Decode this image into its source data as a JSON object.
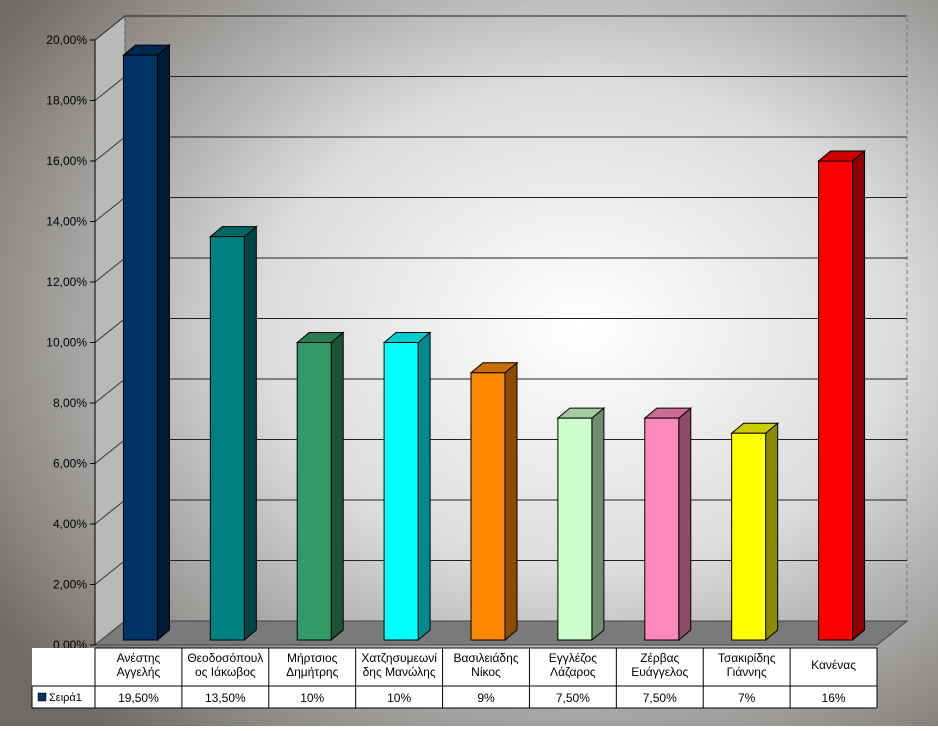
{
  "chart_data": {
    "type": "bar",
    "title": "",
    "xlabel": "",
    "ylabel": "",
    "ylim": [
      0,
      20
    ],
    "ytick_labels": [
      "0,00%",
      "2,00%",
      "4,00%",
      "6,00%",
      "8,00%",
      "10,00%",
      "12,00%",
      "14,00%",
      "16,00%",
      "18,00%",
      "20,00%"
    ],
    "categories": [
      [
        "Ανέστης",
        "Αγγελής"
      ],
      [
        "Θεοδοσόπουλ",
        "ος Ιάκωβος"
      ],
      [
        "Μήρτσιος",
        "Δημήτρης"
      ],
      [
        "Χατζησυμεωνί",
        "δης Μανώλης"
      ],
      [
        "Βασιλειάδης",
        "Νίκος"
      ],
      [
        "Εγγλέζος",
        "Λάζαρος"
      ],
      [
        "Ζέρβας",
        "Ευάγγελος"
      ],
      [
        "Τσακιρίδης",
        "Γιάννης"
      ],
      [
        "Κανένας"
      ]
    ],
    "series": [
      {
        "name": "Σειρά1",
        "values": [
          19.5,
          13.5,
          10,
          10,
          9,
          7.5,
          7.5,
          7,
          16
        ],
        "value_labels": [
          "19,50%",
          "13,50%",
          "10%",
          "10%",
          "9%",
          "7,50%",
          "7,50%",
          "7%",
          "16%"
        ]
      }
    ],
    "bar_colors": [
      "#003366",
      "#008080",
      "#339966",
      "#00ffff",
      "#ff8800",
      "#ccffcc",
      "#ff88bb",
      "#ffff00",
      "#ff0000"
    ],
    "grid": true,
    "legend": "data-table"
  }
}
